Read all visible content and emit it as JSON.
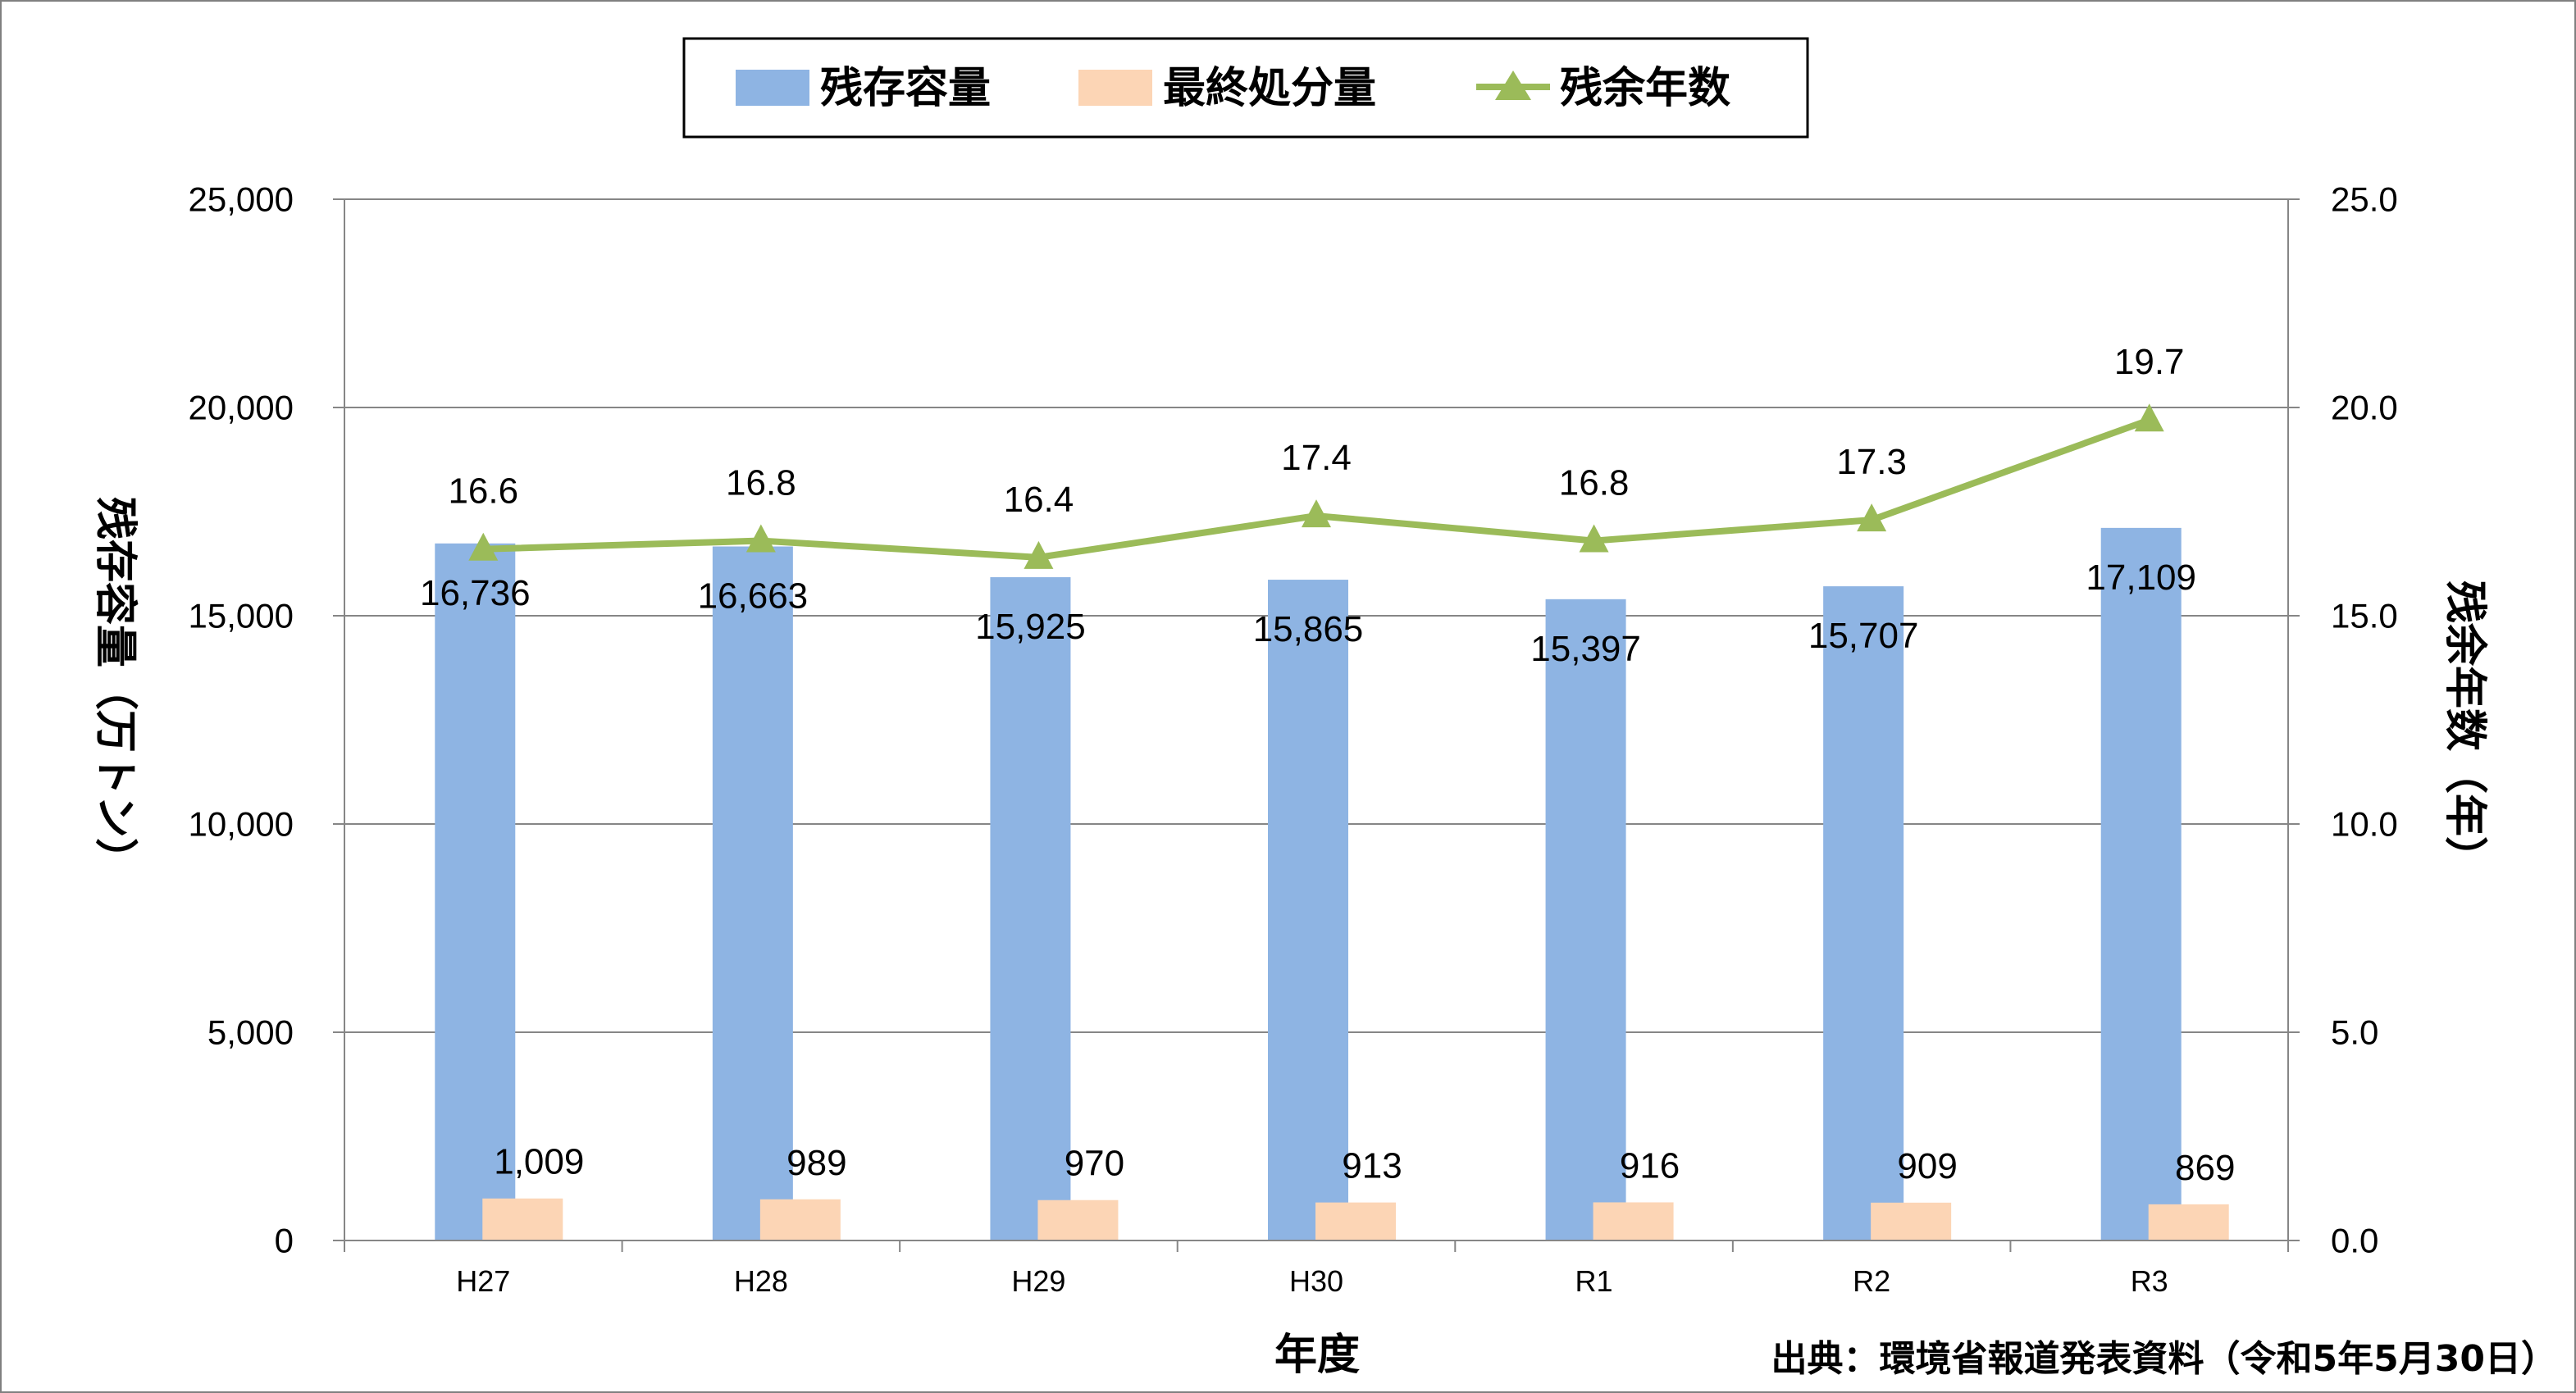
{
  "chart_data": {
    "type": "bar",
    "categories": [
      "H27",
      "H28",
      "H29",
      "H30",
      "R1",
      "R2",
      "R3"
    ],
    "series": [
      {
        "name": "残存容量",
        "type": "bar",
        "axis": "left",
        "color": "#8EB4E3",
        "values": [
          16736,
          16663,
          15925,
          15865,
          15397,
          15707,
          17109
        ],
        "labels": [
          "16,736",
          "16,663",
          "15,925",
          "15,865",
          "15,397",
          "15,707",
          "17,109"
        ]
      },
      {
        "name": "最終処分量",
        "type": "bar",
        "axis": "left",
        "color": "#FCD5B5",
        "values": [
          1009,
          989,
          970,
          913,
          916,
          909,
          869
        ],
        "labels": [
          "1,009",
          "989",
          "970",
          "913",
          "916",
          "909",
          "869"
        ]
      },
      {
        "name": "残余年数",
        "type": "line",
        "axis": "right",
        "color": "#9BBB59",
        "values": [
          16.6,
          16.8,
          16.4,
          17.4,
          16.8,
          17.3,
          19.7
        ],
        "labels": [
          "16.6",
          "16.8",
          "16.4",
          "17.4",
          "16.8",
          "17.3",
          "19.7"
        ]
      }
    ],
    "xlabel": "年度",
    "ylabel": "残存容量（万トン）",
    "ylabel_right": "残余年数（年）",
    "ylim": [
      0,
      25000
    ],
    "ylim_right": [
      0,
      25
    ],
    "yticks": [
      "0",
      "5,000",
      "10,000",
      "15,000",
      "20,000",
      "25,000"
    ],
    "yticks_right": [
      "0.0",
      "5.0",
      "10.0",
      "15.0",
      "20.0",
      "25.0"
    ],
    "grid": true,
    "legend_position": "top-center",
    "source": "出典：環境省報道発表資料（令和5年5月30日）"
  }
}
